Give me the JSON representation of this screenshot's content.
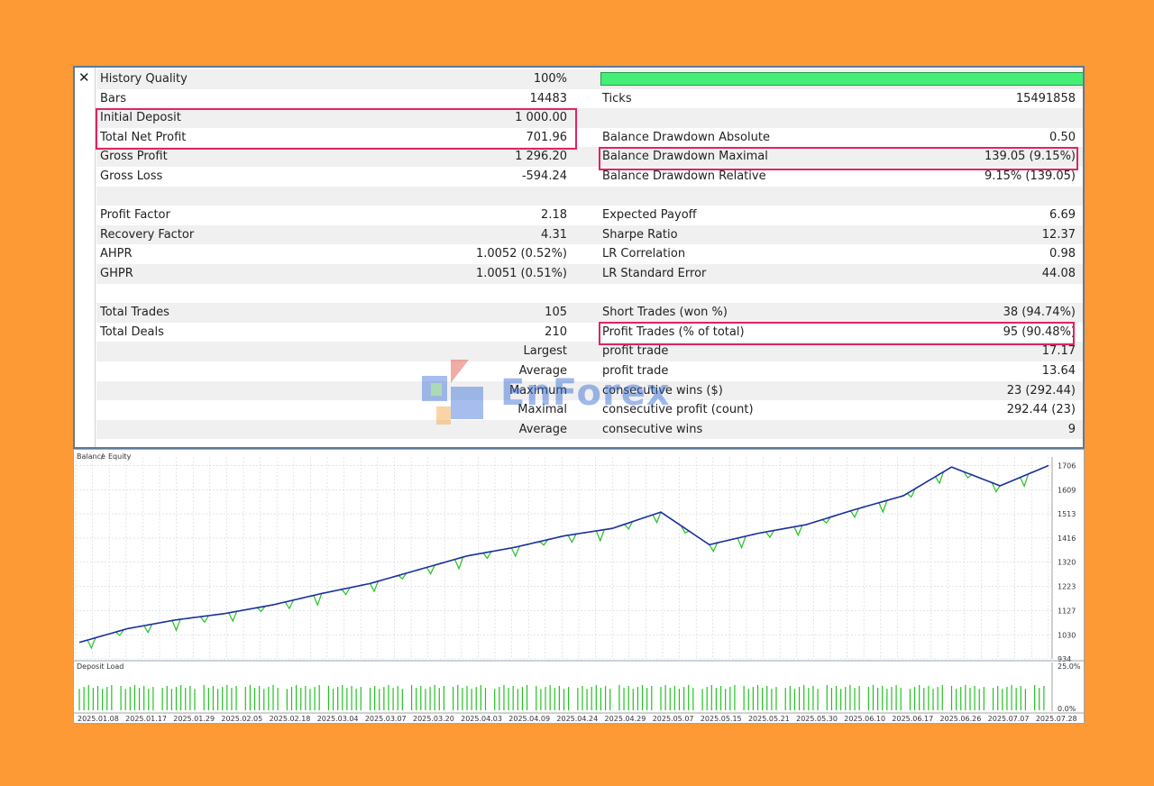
{
  "report": {
    "close_icon_glyph": "✕",
    "quality_bar_color": "#44ee77",
    "highlight_color": "#e0245e",
    "rows": [
      {
        "l_label": "History Quality",
        "l_value": "100%",
        "r_label": "",
        "r_value": "",
        "shade": true
      },
      {
        "l_label": "Bars",
        "l_value": "14483",
        "r_label": "Ticks",
        "r_value": "15491858",
        "shade": false
      },
      {
        "l_label": "Initial Deposit",
        "l_value": "1 000.00",
        "r_label": "",
        "r_value": "",
        "shade": true
      },
      {
        "l_label": "Total Net Profit",
        "l_value": "701.96",
        "r_label": "Balance Drawdown Absolute",
        "r_value": "0.50",
        "shade": false
      },
      {
        "l_label": "Gross Profit",
        "l_value": "1 296.20",
        "r_label": "Balance Drawdown Maximal",
        "r_value": "139.05 (9.15%)",
        "shade": true
      },
      {
        "l_label": "Gross Loss",
        "l_value": "-594.24",
        "r_label": "Balance Drawdown Relative",
        "r_value": "9.15% (139.05)",
        "shade": false
      },
      {
        "l_label": "",
        "l_value": "",
        "r_label": "",
        "r_value": "",
        "shade": true
      },
      {
        "l_label": "Profit Factor",
        "l_value": "2.18",
        "r_label": "Expected Payoff",
        "r_value": "6.69",
        "shade": false
      },
      {
        "l_label": "Recovery Factor",
        "l_value": "4.31",
        "r_label": "Sharpe Ratio",
        "r_value": "12.37",
        "shade": true
      },
      {
        "l_label": "AHPR",
        "l_value": "1.0052 (0.52%)",
        "r_label": "LR Correlation",
        "r_value": "0.98",
        "shade": false
      },
      {
        "l_label": "GHPR",
        "l_value": "1.0051 (0.51%)",
        "r_label": "LR Standard Error",
        "r_value": "44.08",
        "shade": true
      },
      {
        "l_label": "",
        "l_value": "",
        "r_label": "",
        "r_value": "",
        "shade": false
      },
      {
        "l_label": "Total Trades",
        "l_value": "105",
        "r_label": "Short Trades (won %)",
        "r_value": "38 (94.74%)",
        "shade": true
      },
      {
        "l_label": "Total Deals",
        "l_value": "210",
        "r_label": "Profit Trades (% of total)",
        "r_value": "95 (90.48%)",
        "shade": false
      },
      {
        "l_label": "",
        "l_value": "Largest",
        "r_label": "profit trade",
        "r_value": "17.17",
        "shade": true
      },
      {
        "l_label": "",
        "l_value": "Average",
        "r_label": "profit trade",
        "r_value": "13.64",
        "shade": false
      },
      {
        "l_label": "",
        "l_value": "Maximum",
        "r_label": "consecutive wins ($)",
        "r_value": "23 (292.44)",
        "shade": true
      },
      {
        "l_label": "",
        "l_value": "Maximal",
        "r_label": "consecutive profit (count)",
        "r_value": "292.44 (23)",
        "shade": false
      },
      {
        "l_label": "",
        "l_value": "Average",
        "r_label": "consecutive wins",
        "r_value": "9",
        "shade": true
      }
    ]
  },
  "watermark": {
    "text": "EnForex"
  },
  "chart_data": [
    {
      "type": "line",
      "title": "Balance / Equity",
      "series": [
        {
          "name": "Balance",
          "color": "#1d2fa0"
        },
        {
          "name": "Equity",
          "color": "#22c122"
        }
      ],
      "x": [
        "2025.01.08",
        "2025.01.17",
        "2025.01.29",
        "2025.02.05",
        "2025.02.18",
        "2025.03.04",
        "2025.03.07",
        "2025.03.20",
        "2025.04.03",
        "2025.04.09",
        "2025.04.24",
        "2025.04.29",
        "2025.05.07",
        "2025.05.15",
        "2025.05.21",
        "2025.05.30",
        "2025.06.10",
        "2025.06.17",
        "2025.06.26",
        "2025.07.07",
        "2025.07.28"
      ],
      "balance": [
        1000,
        1055,
        1090,
        1115,
        1150,
        1195,
        1235,
        1290,
        1345,
        1380,
        1425,
        1455,
        1520,
        1390,
        1435,
        1470,
        1530,
        1585,
        1700,
        1625,
        1706
      ],
      "ylim": [
        934,
        1740
      ],
      "y_ticks": [
        1706,
        1609,
        1513,
        1416,
        1320,
        1223,
        1127,
        1030,
        934
      ],
      "grid": true
    },
    {
      "type": "bar",
      "title": "Deposit Load",
      "color": "#22c122",
      "y_ticks": [
        "25.0%",
        "0.0%"
      ],
      "ylim": [
        0,
        25
      ],
      "bar_count": 210,
      "typical_value": 11
    }
  ]
}
